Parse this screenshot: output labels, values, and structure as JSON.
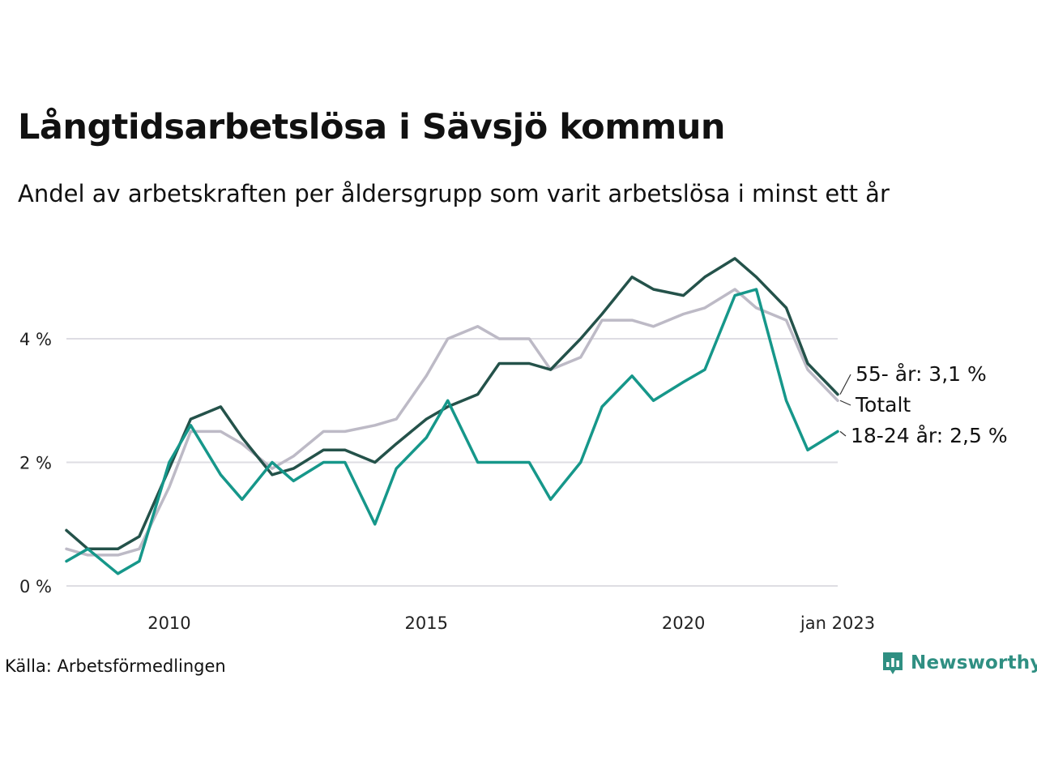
{
  "title": "Långtidsarbetslösa i Sävsjö kommun",
  "subtitle": "Andel av arbetskraften per åldersgrupp som varit arbetslösa i minst ett år",
  "source": "Källa: Arbetsförmedlingen",
  "brand": "Newsworthy",
  "colors": {
    "youth": "#16978a",
    "older": "#24524a",
    "total": "#bdbac6",
    "grid": "#dedde3",
    "brand": "#2f8f82"
  },
  "chart_data": {
    "type": "line",
    "x_range": [
      "2008-01",
      "2023-01"
    ],
    "ylim": [
      0,
      5.6
    ],
    "y_ticks": [
      {
        "value": 0,
        "label": "0 %"
      },
      {
        "value": 2,
        "label": "2 %"
      },
      {
        "value": 4,
        "label": "4 %"
      }
    ],
    "x_ticks": [
      {
        "date": "2010-01",
        "label": "2010"
      },
      {
        "date": "2015-01",
        "label": "2015"
      },
      {
        "date": "2020-01",
        "label": "2020"
      },
      {
        "date": "2023-01",
        "label": "jan 2023"
      }
    ],
    "grid": true,
    "series": [
      {
        "key": "total",
        "name": "Totalt",
        "label": "Totalt",
        "points": [
          [
            "2008-01",
            0.6
          ],
          [
            "2008-06",
            0.5
          ],
          [
            "2009-01",
            0.5
          ],
          [
            "2009-06",
            0.6
          ],
          [
            "2010-01",
            1.6
          ],
          [
            "2010-06",
            2.5
          ],
          [
            "2011-01",
            2.5
          ],
          [
            "2011-06",
            2.3
          ],
          [
            "2012-01",
            1.9
          ],
          [
            "2012-06",
            2.1
          ],
          [
            "2013-01",
            2.5
          ],
          [
            "2013-06",
            2.5
          ],
          [
            "2014-01",
            2.6
          ],
          [
            "2014-06",
            2.7
          ],
          [
            "2015-01",
            3.4
          ],
          [
            "2015-06",
            4.0
          ],
          [
            "2016-01",
            4.2
          ],
          [
            "2016-06",
            4.0
          ],
          [
            "2017-01",
            4.0
          ],
          [
            "2017-06",
            3.5
          ],
          [
            "2018-01",
            3.7
          ],
          [
            "2018-06",
            4.3
          ],
          [
            "2019-01",
            4.3
          ],
          [
            "2019-06",
            4.2
          ],
          [
            "2020-01",
            4.4
          ],
          [
            "2020-06",
            4.5
          ],
          [
            "2021-01",
            4.8
          ],
          [
            "2021-06",
            4.5
          ],
          [
            "2022-01",
            4.3
          ],
          [
            "2022-06",
            3.5
          ],
          [
            "2023-01",
            3.0
          ]
        ]
      },
      {
        "key": "older",
        "name": "55- år",
        "label": "55- år: 3,1 %",
        "points": [
          [
            "2008-01",
            0.9
          ],
          [
            "2008-06",
            0.6
          ],
          [
            "2009-01",
            0.6
          ],
          [
            "2009-06",
            0.8
          ],
          [
            "2010-01",
            1.9
          ],
          [
            "2010-06",
            2.7
          ],
          [
            "2011-01",
            2.9
          ],
          [
            "2011-06",
            2.4
          ],
          [
            "2012-01",
            1.8
          ],
          [
            "2012-06",
            1.9
          ],
          [
            "2013-01",
            2.2
          ],
          [
            "2013-06",
            2.2
          ],
          [
            "2014-01",
            2.0
          ],
          [
            "2014-06",
            2.3
          ],
          [
            "2015-01",
            2.7
          ],
          [
            "2015-06",
            2.9
          ],
          [
            "2016-01",
            3.1
          ],
          [
            "2016-06",
            3.6
          ],
          [
            "2017-01",
            3.6
          ],
          [
            "2017-06",
            3.5
          ],
          [
            "2018-01",
            4.0
          ],
          [
            "2018-06",
            4.4
          ],
          [
            "2019-01",
            5.0
          ],
          [
            "2019-06",
            4.8
          ],
          [
            "2020-01",
            4.7
          ],
          [
            "2020-06",
            5.0
          ],
          [
            "2021-01",
            5.3
          ],
          [
            "2021-06",
            5.0
          ],
          [
            "2022-01",
            4.5
          ],
          [
            "2022-06",
            3.6
          ],
          [
            "2023-01",
            3.1
          ]
        ]
      },
      {
        "key": "youth",
        "name": "18-24 år",
        "label": "18-24 år: 2,5 %",
        "points": [
          [
            "2008-01",
            0.4
          ],
          [
            "2008-06",
            0.6
          ],
          [
            "2009-01",
            0.2
          ],
          [
            "2009-06",
            0.4
          ],
          [
            "2010-01",
            2.0
          ],
          [
            "2010-06",
            2.6
          ],
          [
            "2011-01",
            1.8
          ],
          [
            "2011-06",
            1.4
          ],
          [
            "2012-01",
            2.0
          ],
          [
            "2012-06",
            1.7
          ],
          [
            "2013-01",
            2.0
          ],
          [
            "2013-06",
            2.0
          ],
          [
            "2014-01",
            1.0
          ],
          [
            "2014-06",
            1.9
          ],
          [
            "2015-01",
            2.4
          ],
          [
            "2015-06",
            3.0
          ],
          [
            "2016-01",
            2.0
          ],
          [
            "2016-06",
            2.0
          ],
          [
            "2017-01",
            2.0
          ],
          [
            "2017-06",
            1.4
          ],
          [
            "2018-01",
            2.0
          ],
          [
            "2018-06",
            2.9
          ],
          [
            "2019-01",
            3.4
          ],
          [
            "2019-06",
            3.0
          ],
          [
            "2020-01",
            3.3
          ],
          [
            "2020-06",
            3.5
          ],
          [
            "2021-01",
            4.7
          ],
          [
            "2021-06",
            4.8
          ],
          [
            "2022-01",
            3.0
          ],
          [
            "2022-06",
            2.2
          ],
          [
            "2023-01",
            2.5
          ]
        ]
      }
    ]
  }
}
